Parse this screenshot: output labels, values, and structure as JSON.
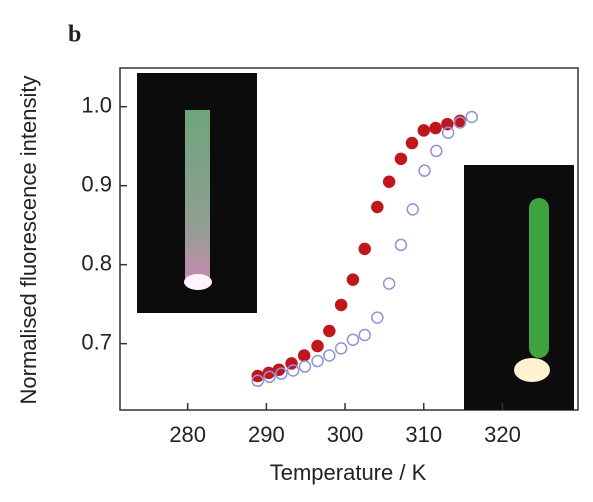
{
  "chart_data": {
    "type": "scatter",
    "panel_label": "b",
    "x_label": "Temperature / K",
    "y_label": "Normalised fluorescence intensity",
    "xlim": [
      271.4,
      329.6
    ],
    "ylim": [
      0.616,
      1.049
    ],
    "xticks": [
      280,
      290,
      300,
      310,
      320
    ],
    "yticks": [
      0.7,
      0.8,
      0.9,
      {
        "value": 1,
        "label": "1.0"
      }
    ],
    "series": [
      {
        "color": "#c0171c",
        "filled": true,
        "x": [
          288.9,
          290.3,
          291.6,
          293.2,
          294.8,
          296.5,
          298.0,
          299.5,
          301.0,
          302.5,
          304.1,
          305.6,
          307.1,
          308.5,
          310.0,
          311.5,
          313.0,
          314.6
        ],
        "values": [
          0.659,
          0.663,
          0.667,
          0.675,
          0.685,
          0.697,
          0.716,
          0.749,
          0.781,
          0.82,
          0.873,
          0.905,
          0.934,
          0.954,
          0.97,
          0.973,
          0.978,
          0.982
        ]
      },
      {
        "color": "#8f93d8",
        "filled": false,
        "x": [
          288.9,
          290.4,
          291.9,
          293.4,
          294.9,
          296.5,
          298.0,
          299.5,
          301.0,
          302.5,
          304.1,
          305.6,
          307.1,
          308.6,
          310.1,
          311.6,
          313.1,
          314.6,
          316.1
        ],
        "values": [
          0.653,
          0.658,
          0.662,
          0.666,
          0.671,
          0.678,
          0.685,
          0.694,
          0.705,
          0.711,
          0.733,
          0.776,
          0.825,
          0.87,
          0.919,
          0.944,
          0.967,
          0.98,
          0.987
        ]
      }
    ]
  }
}
